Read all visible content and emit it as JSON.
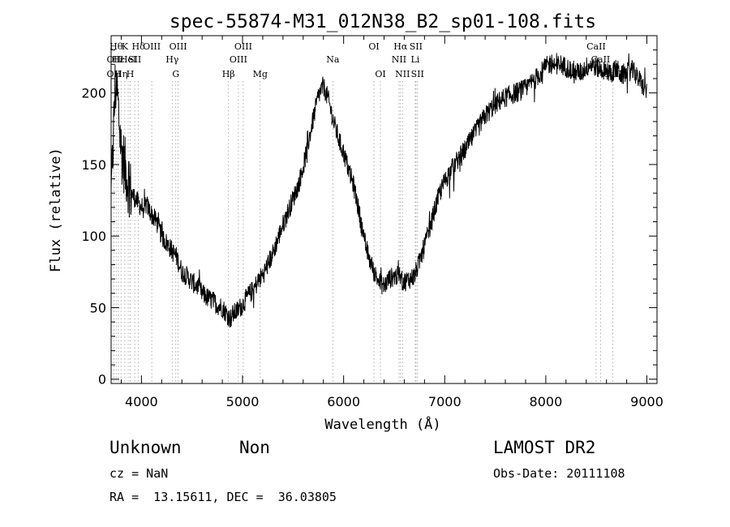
{
  "chart_data": {
    "type": "line",
    "title": "spec-55874-M31_012N38_B2_sp01-108.fits",
    "xlabel": "Wavelength (Å)",
    "ylabel": "Flux (relative)",
    "xlim": [
      3700,
      9100
    ],
    "ylim": [
      -3,
      240
    ],
    "xticks": [
      4000,
      5000,
      6000,
      7000,
      8000,
      9000
    ],
    "yticks": [
      0,
      50,
      100,
      150,
      200
    ],
    "grid": false,
    "series": [
      {
        "x": [
          3700,
          3720,
          3740,
          3760,
          3780,
          3800,
          3830,
          3860,
          3900,
          3950,
          4000,
          4050,
          4100,
          4150,
          4200,
          4250,
          4300,
          4350,
          4400,
          4450,
          4500,
          4550,
          4600,
          4650,
          4700,
          4750,
          4800,
          4850,
          4880,
          4900,
          4950,
          5000,
          5050,
          5100,
          5150,
          5200,
          5250,
          5300,
          5350,
          5400,
          5450,
          5500,
          5550,
          5600,
          5650,
          5700,
          5750,
          5800,
          5850,
          5900,
          5950,
          6000,
          6050,
          6100,
          6150,
          6200,
          6250,
          6300,
          6350,
          6400,
          6450,
          6500,
          6550,
          6600,
          6650,
          6700,
          6750,
          6800,
          6850,
          6900,
          6950,
          7000,
          7050,
          7100,
          7150,
          7200,
          7250,
          7300,
          7350,
          7400,
          7450,
          7500,
          7600,
          7700,
          7800,
          7900,
          8000,
          8050,
          8100,
          8150,
          8200,
          8250,
          8300,
          8350,
          8400,
          8450,
          8500,
          8550,
          8600,
          8650,
          8700,
          8750,
          8800,
          8850,
          8900,
          8950,
          9000
        ],
        "y": [
          125,
          165,
          205,
          200,
          180,
          160,
          150,
          140,
          130,
          125,
          120,
          122,
          115,
          110,
          100,
          95,
          90,
          85,
          75,
          72,
          68,
          65,
          60,
          57,
          55,
          52,
          50,
          45,
          42,
          45,
          48,
          52,
          58,
          62,
          68,
          73,
          80,
          88,
          98,
          108,
          117,
          126,
          135,
          148,
          165,
          182,
          198,
          205,
          195,
          180,
          168,
          158,
          146,
          135,
          118,
          98,
          85,
          75,
          68,
          65,
          70,
          72,
          72,
          68,
          70,
          72,
          82,
          93,
          105,
          118,
          130,
          138,
          145,
          150,
          156,
          160,
          166,
          172,
          178,
          184,
          188,
          192,
          197,
          200,
          203,
          210,
          218,
          221,
          219,
          220,
          218,
          216,
          215,
          214,
          218,
          220,
          218,
          216,
          215,
          214,
          217,
          212,
          214,
          216,
          212,
          206,
          200
        ]
      }
    ],
    "lines": [
      {
        "wl": 3727,
        "row": 1,
        "label": "OII"
      },
      {
        "wl": 3727,
        "row": 2,
        "label": "OII"
      },
      {
        "wl": 3750,
        "row": 0,
        "label": "Hθ"
      },
      {
        "wl": 3771,
        "row": 1,
        "label": "Hε"
      },
      {
        "wl": 3798,
        "row": 2,
        "label": "Hη"
      },
      {
        "wl": 3835,
        "row": 0,
        "label": "K"
      },
      {
        "wl": 3869,
        "row": 1,
        "label": "HeI"
      },
      {
        "wl": 3889,
        "row": 2,
        "label": "H"
      },
      {
        "wl": 3934,
        "row": 1,
        "label": "SII"
      },
      {
        "wl": 3970,
        "row": 0,
        "label": "Hδ"
      },
      {
        "wl": 4102,
        "row": 0,
        "label": "OIII"
      },
      {
        "wl": 4304,
        "row": 1,
        "label": "Hγ"
      },
      {
        "wl": 4340,
        "row": 2,
        "label": "G"
      },
      {
        "wl": 4363,
        "row": 0,
        "label": "OIII"
      },
      {
        "wl": 4861,
        "row": 2,
        "label": "Hβ"
      },
      {
        "wl": 4959,
        "row": 1,
        "label": "OIII"
      },
      {
        "wl": 5007,
        "row": 0,
        "label": "OIII"
      },
      {
        "wl": 5175,
        "row": 2,
        "label": "Mg"
      },
      {
        "wl": 5893,
        "row": 1,
        "label": "Na"
      },
      {
        "wl": 6300,
        "row": 0,
        "label": "OI"
      },
      {
        "wl": 6364,
        "row": 2,
        "label": "OI"
      },
      {
        "wl": 6548,
        "row": 1,
        "label": "NII"
      },
      {
        "wl": 6563,
        "row": 0,
        "label": "Hα"
      },
      {
        "wl": 6583,
        "row": 2,
        "label": "NII"
      },
      {
        "wl": 6708,
        "row": 1,
        "label": "Li"
      },
      {
        "wl": 6716,
        "row": 0,
        "label": "SII"
      },
      {
        "wl": 6731,
        "row": 2,
        "label": "SII"
      },
      {
        "wl": 8498,
        "row": 0,
        "label": "CaII"
      },
      {
        "wl": 8542,
        "row": 1,
        "label": "CaII"
      },
      {
        "wl": 8662,
        "row": 2,
        "label": "CaII"
      }
    ]
  },
  "footer": {
    "class_label": "Unknown",
    "subclass_label": "Non",
    "survey": "LAMOST DR2",
    "cz": "cz = NaN",
    "obs_date": "Obs-Date: 20111108",
    "coords": "RA =  13.15611, DEC =  36.03805"
  }
}
